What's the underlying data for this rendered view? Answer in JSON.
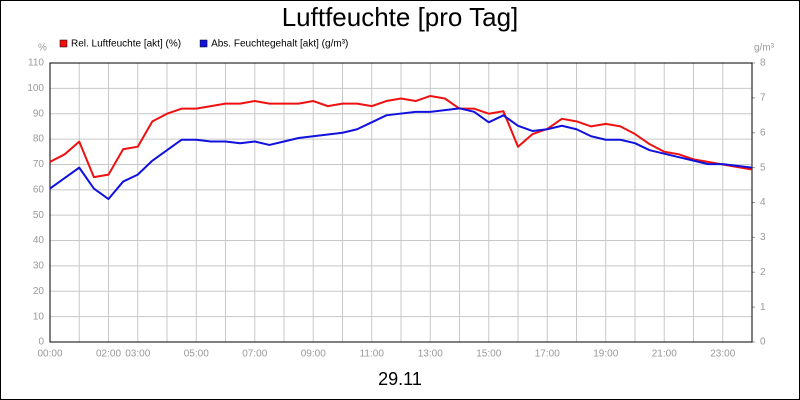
{
  "chart_data": {
    "type": "line",
    "title": "Luftfeuchte [pro Tag]",
    "xlabel": "29.11",
    "ylabel": "%",
    "y2label": "g/m³",
    "x": [
      0,
      0.5,
      1,
      1.5,
      2,
      2.5,
      3,
      3.5,
      4,
      4.5,
      5,
      5.5,
      6,
      6.5,
      7,
      7.5,
      8,
      8.5,
      9,
      9.5,
      10,
      10.5,
      11,
      11.5,
      12,
      12.5,
      13,
      13.5,
      14,
      14.5,
      15,
      15.5,
      16,
      16.5,
      17,
      17.5,
      18,
      18.5,
      19,
      19.5,
      20,
      20.5,
      21,
      21.5,
      22,
      22.5,
      23,
      23.5,
      24
    ],
    "series": [
      {
        "name": "Rel. Luftfeuchte [akt] (%)",
        "color": "#ee1111",
        "axis": "y",
        "values": [
          71,
          74,
          79,
          65,
          66,
          76,
          77,
          87,
          90,
          92,
          92,
          93,
          94,
          94,
          95,
          94,
          94,
          94,
          95,
          93,
          94,
          94,
          93,
          95,
          96,
          95,
          97,
          96,
          92,
          92,
          90,
          91,
          77,
          82,
          84,
          88,
          87,
          85,
          86,
          85,
          82,
          78,
          75,
          74,
          72,
          71,
          70,
          69,
          68
        ]
      },
      {
        "name": "Abs. Feuchtegehalt [akt] (g/m³)",
        "color": "#1111dd",
        "axis": "y2",
        "values": [
          4.4,
          4.7,
          5.0,
          4.4,
          4.1,
          4.6,
          4.8,
          5.2,
          5.5,
          5.8,
          5.8,
          5.75,
          5.75,
          5.7,
          5.75,
          5.65,
          5.75,
          5.85,
          5.9,
          5.95,
          6.0,
          6.1,
          6.3,
          6.5,
          6.55,
          6.6,
          6.6,
          6.65,
          6.7,
          6.6,
          6.3,
          6.5,
          6.2,
          6.05,
          6.1,
          6.2,
          6.1,
          5.9,
          5.8,
          5.8,
          5.7,
          5.5,
          5.4,
          5.3,
          5.2,
          5.1,
          5.1,
          5.05,
          5.0
        ]
      }
    ],
    "xlim": [
      0,
      24
    ],
    "xticks": [
      {
        "value": 0,
        "label": "00:00"
      },
      {
        "value": 1,
        "label": null
      },
      {
        "value": 2,
        "label": "02:00"
      },
      {
        "value": 3,
        "label": "03:00"
      },
      {
        "value": 4,
        "label": null
      },
      {
        "value": 5,
        "label": "05:00"
      },
      {
        "value": 6,
        "label": null
      },
      {
        "value": 7,
        "label": "07:00"
      },
      {
        "value": 8,
        "label": null
      },
      {
        "value": 9,
        "label": "09:00"
      },
      {
        "value": 10,
        "label": null
      },
      {
        "value": 11,
        "label": "11:00"
      },
      {
        "value": 12,
        "label": null
      },
      {
        "value": 13,
        "label": "13:00"
      },
      {
        "value": 14,
        "label": null
      },
      {
        "value": 15,
        "label": "15:00"
      },
      {
        "value": 16,
        "label": null
      },
      {
        "value": 17,
        "label": "17:00"
      },
      {
        "value": 18,
        "label": null
      },
      {
        "value": 19,
        "label": "19:00"
      },
      {
        "value": 20,
        "label": null
      },
      {
        "value": 21,
        "label": "21:00"
      },
      {
        "value": 22,
        "label": null
      },
      {
        "value": 23,
        "label": "23:00"
      },
      {
        "value": 24,
        "label": null
      }
    ],
    "ylim": [
      0,
      110
    ],
    "yticks": [
      0,
      10,
      20,
      30,
      40,
      50,
      60,
      70,
      80,
      90,
      100,
      110
    ],
    "y2lim": [
      0,
      8
    ],
    "y2ticks": [
      0,
      1,
      2,
      3,
      4,
      5,
      6,
      7,
      8
    ],
    "grid": true
  }
}
